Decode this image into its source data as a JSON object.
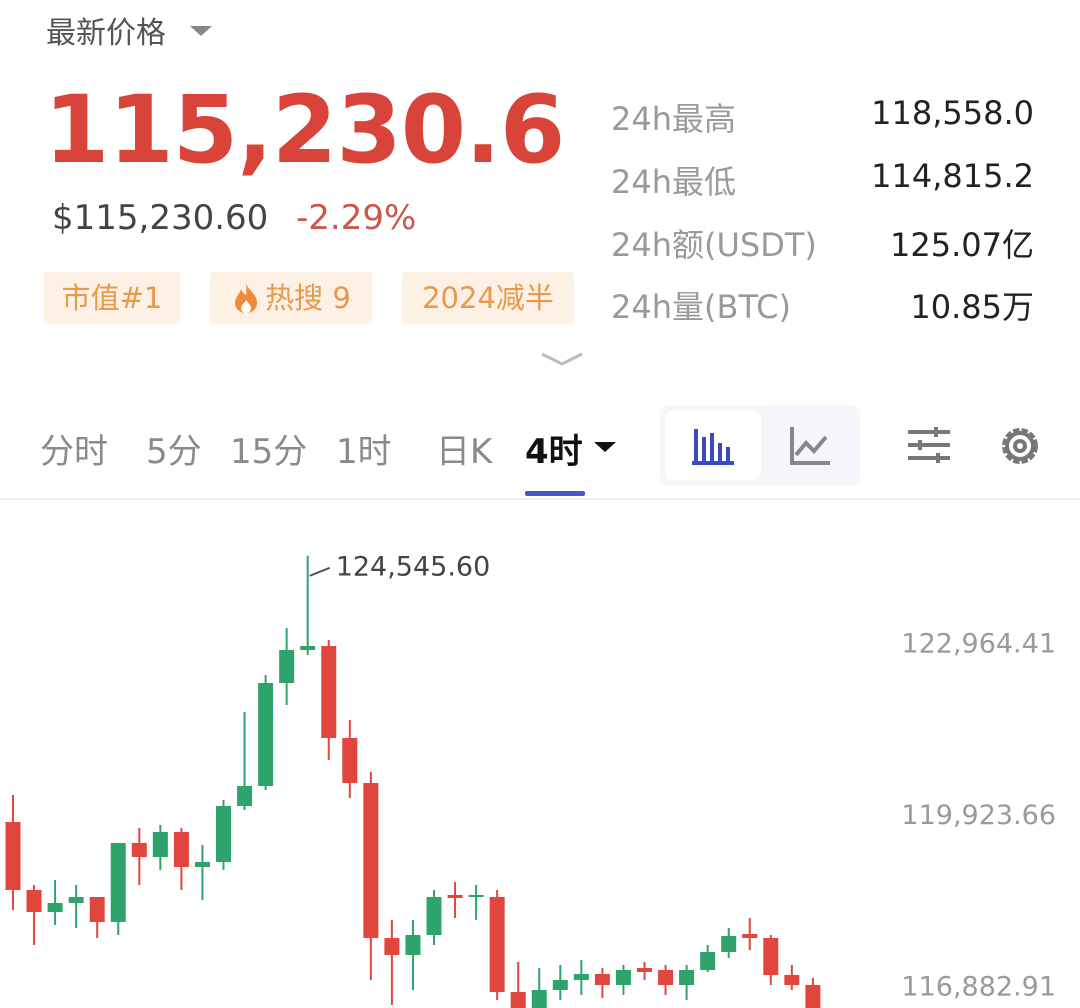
{
  "header": {
    "title": "最新价格",
    "price": "115,230.6",
    "usd_price": "$115,230.60",
    "change": "-2.29%"
  },
  "tags": [
    "市值#1",
    "热搜 9",
    "2024减半"
  ],
  "stats": [
    {
      "label": "24h最高",
      "value": "118,558.0"
    },
    {
      "label": "24h最低",
      "value": "114,815.2"
    },
    {
      "label": "24h额(USDT)",
      "value": "125.07亿"
    },
    {
      "label": "24h量(BTC)",
      "value": "10.85万"
    }
  ],
  "tabs": [
    {
      "label": "分时"
    },
    {
      "label": "5分"
    },
    {
      "label": "15分"
    },
    {
      "label": "1时"
    },
    {
      "label": "日K"
    },
    {
      "label": "4时",
      "active": true
    }
  ],
  "chart_data": {
    "type": "candlestick",
    "up_color": "#2ea36b",
    "down_color": "#e0463d",
    "open": [
      119826,
      118620,
      118230,
      118390,
      118496,
      118053,
      119454,
      119205,
      119649,
      119028,
      119117,
      120110,
      120464,
      122290,
      122875,
      122946,
      121315,
      120517,
      117769,
      117468,
      117822,
      118532,
      118496,
      118496,
      116812,
      116528,
      116847,
      117025,
      117131,
      116936,
      117237,
      117202,
      116936,
      117202,
      117521,
      117840,
      117769,
      117113,
      116936
    ],
    "high": [
      120305,
      118709,
      118798,
      118709,
      118496,
      119454,
      119720,
      119773,
      119720,
      119418,
      120216,
      121776,
      122432,
      123266,
      124545.6,
      123053,
      121634,
      120712,
      118088,
      118088,
      118620,
      118762,
      118709,
      118620,
      117344,
      117237,
      117291,
      117379,
      117237,
      117291,
      117344,
      117291,
      117291,
      117645,
      117947,
      118124,
      117822,
      117291,
      117060
    ],
    "low": [
      118266,
      117645,
      118000,
      117947,
      117769,
      117822,
      118709,
      118975,
      118620,
      118443,
      118975,
      120039,
      120393,
      121900,
      122787,
      120925,
      120251,
      117025,
      116581,
      116847,
      117645,
      118124,
      118088,
      116670,
      116528,
      116528,
      116670,
      116759,
      116705,
      116759,
      117025,
      116759,
      116670,
      117166,
      117415,
      117556,
      116936,
      116847,
      116528
    ],
    "close": [
      118620,
      118230,
      118390,
      118496,
      118053,
      119454,
      119205,
      119649,
      119028,
      119117,
      120110,
      120464,
      122290,
      122875,
      122946,
      121315,
      120517,
      117769,
      117468,
      117822,
      118496,
      118478,
      118532,
      116812,
      116528,
      116847,
      117025,
      117131,
      116936,
      117202,
      117166,
      116936,
      117202,
      117521,
      117805,
      117769,
      117113,
      116936,
      116528
    ],
    "ylim": [
      116528,
      125535
    ],
    "yticks": [
      {
        "value": 116882.91,
        "label": "116,882.91"
      },
      {
        "value": 119923.66,
        "label": "119,923.66"
      },
      {
        "value": 122964.41,
        "label": "122,964.41"
      }
    ],
    "yaxis_position": "right",
    "max_label": "124,545.60"
  }
}
